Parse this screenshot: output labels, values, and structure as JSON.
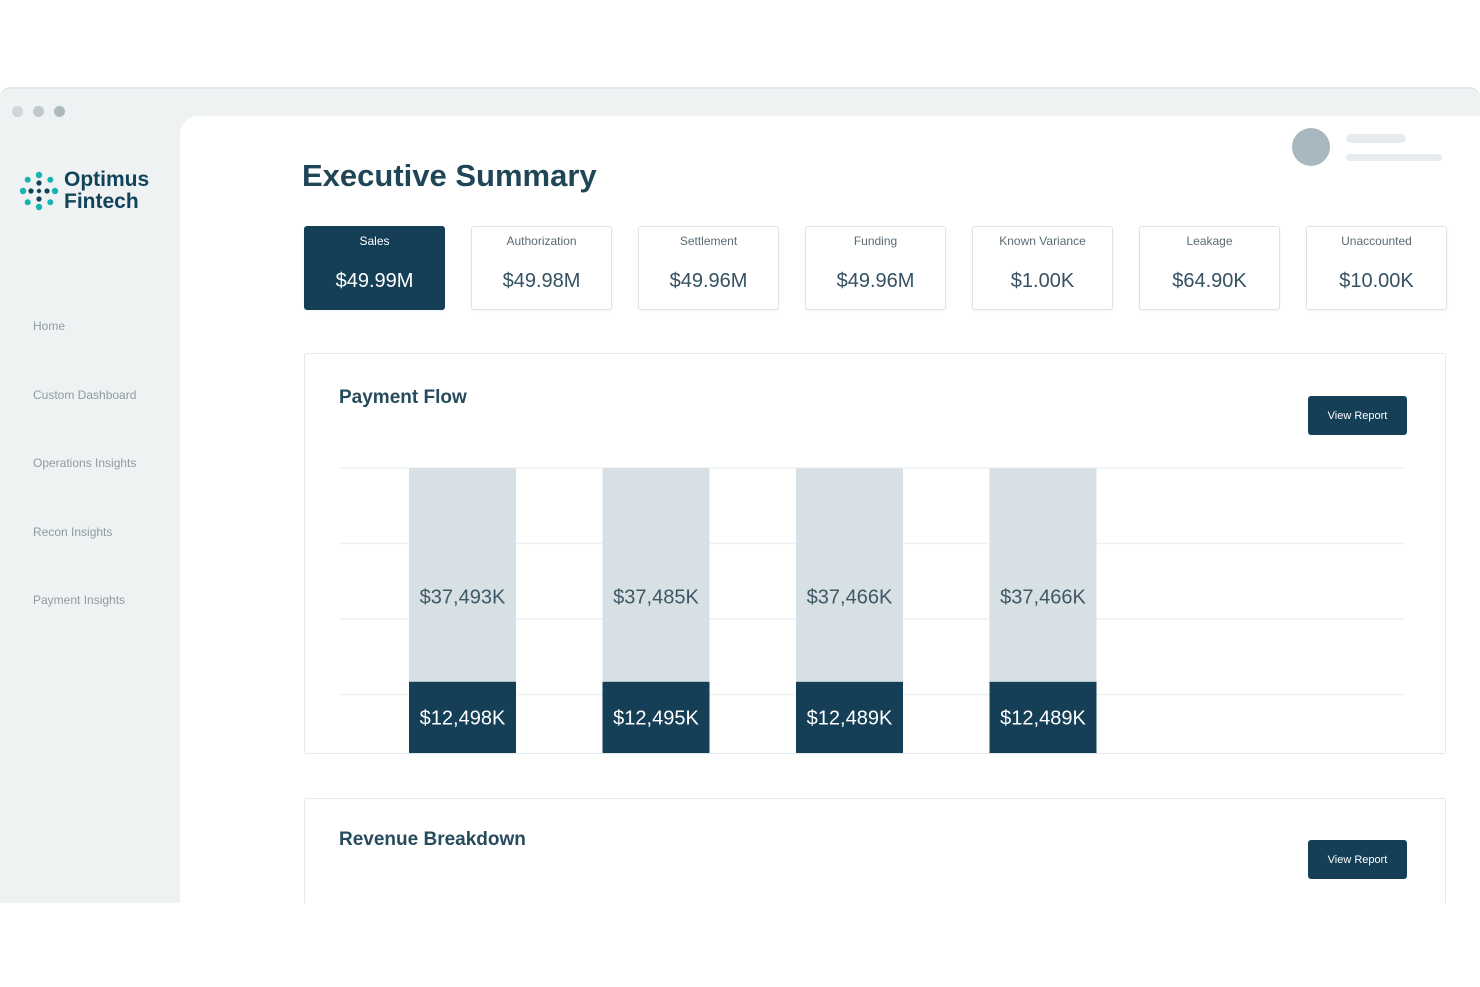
{
  "brand": {
    "line1": "Optimus",
    "line2": "Fintech"
  },
  "nav": [
    "Home",
    "Custom Dashboard",
    "Operations Insights",
    "Recon Insights",
    "Payment Insights"
  ],
  "page_title": "Executive Summary",
  "kpis": [
    {
      "label": "Sales",
      "value": "$49.99M",
      "active": true
    },
    {
      "label": "Authorization",
      "value": "$49.98M"
    },
    {
      "label": "Settlement",
      "value": "$49.96M"
    },
    {
      "label": "Funding",
      "value": "$49.96M"
    },
    {
      "label": "Known Variance",
      "value": "$1.00K"
    },
    {
      "label": "Leakage",
      "value": "$64.90K"
    },
    {
      "label": "Unaccounted",
      "value": "$10.00K"
    }
  ],
  "payment_flow": {
    "title": "Payment Flow",
    "button": "View Report"
  },
  "revenue": {
    "title": "Revenue Breakdown",
    "button": "View Report"
  },
  "colors": {
    "primary": "#153f56",
    "bar_light": "#d7e0e4",
    "accent": "#17b3b0"
  },
  "chart_data": {
    "type": "bar",
    "stacked": true,
    "categories": [
      "",
      "",
      "",
      ""
    ],
    "series": [
      {
        "values": [
          12498,
          12495,
          12489,
          12489
        ],
        "labels": [
          "$12,498K",
          "$12,495K",
          "$12,489K",
          "$12,489K"
        ]
      },
      {
        "values": [
          37493,
          37485,
          37466,
          37466
        ],
        "labels": [
          "$37,493K",
          "$37,485K",
          "$37,466K",
          "$37,466K"
        ]
      }
    ],
    "ylim": [
      0,
      50000
    ],
    "grid": true
  }
}
